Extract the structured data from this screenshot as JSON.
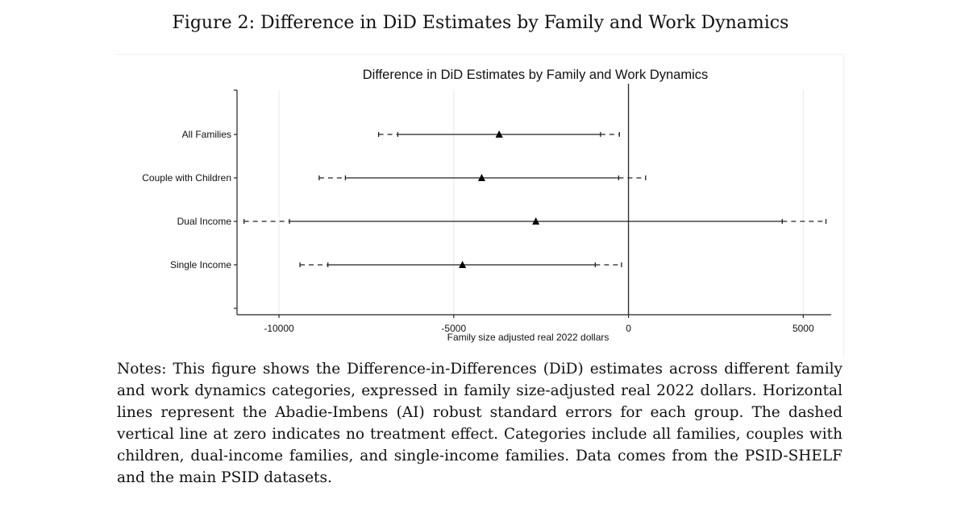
{
  "figure_caption": "Figure 2: Difference in DiD Estimates by Family and Work Dynamics",
  "notes": "Notes: This figure shows the Difference-in-Differences (DiD) estimates across different family and work dynamics categories, expressed in family size-adjusted real 2022 dollars. Horizontal lines represent the Abadie-Imbens (AI) robust standard errors for each group. The dashed vertical line at zero indicates no treatment effect. Categories include all families, couples with children, dual-income families, and single-income families. Data comes from the PSID-SHELF and the main PSID datasets.",
  "chart_data": {
    "type": "scatter",
    "title": "Difference in DiD Estimates by Family and Work Dynamics",
    "xlabel": "Family size adjusted real 2022 dollars",
    "ylabel": "",
    "xlim": [
      -11200,
      5800
    ],
    "x_ticks": [
      -10000,
      -5000,
      0,
      5000
    ],
    "x_tick_labels": [
      "-10000",
      "-5000",
      "0",
      "5000"
    ],
    "grid": true,
    "reference_line_x": 0,
    "marker": "triangle",
    "categories": [
      "All Families",
      "Couple with Children",
      "Dual Income",
      "Single Income"
    ],
    "estimates": [
      -3700,
      -4200,
      -2650,
      -4750
    ],
    "ci_inner": [
      [
        -6600,
        -800
      ],
      [
        -8100,
        -280
      ],
      [
        -9700,
        4400
      ],
      [
        -8600,
        -950
      ]
    ],
    "ci_outer": [
      [
        -7150,
        -260
      ],
      [
        -8850,
        490
      ],
      [
        -11000,
        5650
      ],
      [
        -9400,
        -200
      ]
    ],
    "colors": {
      "line": "#222222",
      "grid": "#e8e8e8",
      "zero_line": "#333333"
    }
  }
}
